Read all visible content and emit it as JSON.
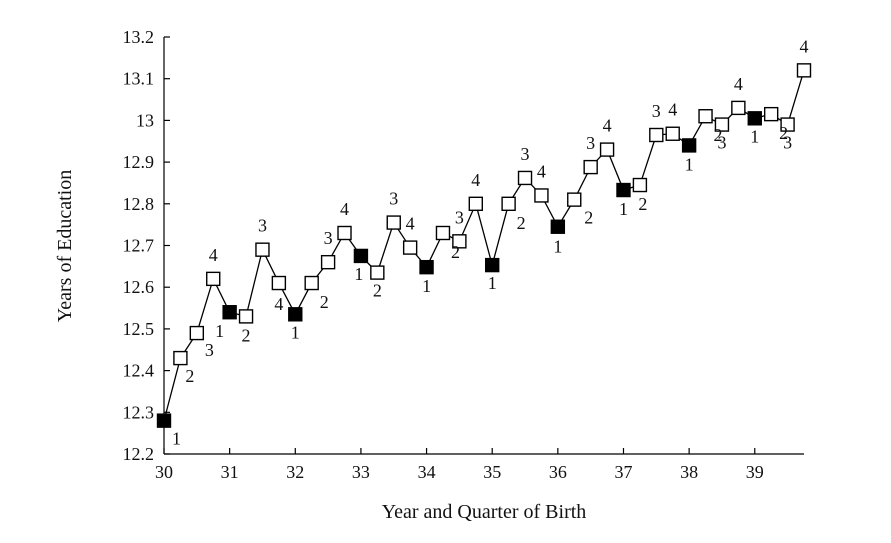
{
  "chart_data": {
    "type": "line",
    "title": "",
    "xlabel": "Year and Quarter of Birth",
    "ylabel": "Years of Education",
    "xlim": [
      30,
      39.75
    ],
    "ylim": [
      12.2,
      13.2
    ],
    "x_ticks": [
      30,
      31,
      32,
      33,
      34,
      35,
      36,
      37,
      38,
      39
    ],
    "x_tick_labels": [
      "30",
      "31",
      "32",
      "33",
      "34",
      "35",
      "36",
      "37",
      "38",
      "39"
    ],
    "y_ticks": [
      12.2,
      12.3,
      12.4,
      12.5,
      12.6,
      12.7,
      12.8,
      12.9,
      13.0,
      13.1,
      13.2
    ],
    "y_tick_labels": [
      "12.2",
      "12.3",
      "12.4",
      "12.5",
      "12.6",
      "12.7",
      "12.8",
      "12.9",
      "13",
      "13.1",
      "13.2"
    ],
    "grid": false,
    "legend": "none",
    "marker_style": {
      "quarter_1": "filled-square",
      "other_quarters": "hollow-square",
      "line_color": "#000000"
    },
    "series": [
      {
        "points": [
          {
            "x": 30.0,
            "y": 12.28,
            "quarter": "1"
          },
          {
            "x": 30.25,
            "y": 12.43,
            "quarter": "2"
          },
          {
            "x": 30.5,
            "y": 12.49,
            "quarter": "3"
          },
          {
            "x": 30.75,
            "y": 12.62,
            "quarter": "4"
          },
          {
            "x": 31.0,
            "y": 12.54,
            "quarter": "1"
          },
          {
            "x": 31.25,
            "y": 12.53,
            "quarter": "2"
          },
          {
            "x": 31.5,
            "y": 12.69,
            "quarter": "3"
          },
          {
            "x": 31.75,
            "y": 12.61,
            "quarter": "4"
          },
          {
            "x": 32.0,
            "y": 12.535,
            "quarter": "1"
          },
          {
            "x": 32.25,
            "y": 12.61,
            "quarter": "2"
          },
          {
            "x": 32.5,
            "y": 12.66,
            "quarter": "3"
          },
          {
            "x": 32.75,
            "y": 12.73,
            "quarter": "4"
          },
          {
            "x": 33.0,
            "y": 12.675,
            "quarter": "1"
          },
          {
            "x": 33.25,
            "y": 12.635,
            "quarter": "2"
          },
          {
            "x": 33.5,
            "y": 12.755,
            "quarter": "3"
          },
          {
            "x": 33.75,
            "y": 12.695,
            "quarter": "4"
          },
          {
            "x": 34.0,
            "y": 12.648,
            "quarter": "1"
          },
          {
            "x": 34.25,
            "y": 12.73,
            "quarter": "2"
          },
          {
            "x": 34.5,
            "y": 12.71,
            "quarter": "3"
          },
          {
            "x": 34.75,
            "y": 12.8,
            "quarter": "4"
          },
          {
            "x": 35.0,
            "y": 12.653,
            "quarter": "1"
          },
          {
            "x": 35.25,
            "y": 12.8,
            "quarter": "2"
          },
          {
            "x": 35.5,
            "y": 12.862,
            "quarter": "3"
          },
          {
            "x": 35.75,
            "y": 12.82,
            "quarter": "4"
          },
          {
            "x": 36.0,
            "y": 12.745,
            "quarter": "1"
          },
          {
            "x": 36.25,
            "y": 12.81,
            "quarter": "2"
          },
          {
            "x": 36.5,
            "y": 12.888,
            "quarter": "3"
          },
          {
            "x": 36.75,
            "y": 12.93,
            "quarter": "4"
          },
          {
            "x": 37.0,
            "y": 12.833,
            "quarter": "1"
          },
          {
            "x": 37.25,
            "y": 12.845,
            "quarter": "2"
          },
          {
            "x": 37.5,
            "y": 12.965,
            "quarter": "3"
          },
          {
            "x": 37.75,
            "y": 12.968,
            "quarter": "4"
          },
          {
            "x": 38.0,
            "y": 12.94,
            "quarter": "1"
          },
          {
            "x": 38.25,
            "y": 13.01,
            "quarter": "2"
          },
          {
            "x": 38.5,
            "y": 12.99,
            "quarter": "3"
          },
          {
            "x": 38.75,
            "y": 13.03,
            "quarter": "4"
          },
          {
            "x": 39.0,
            "y": 13.005,
            "quarter": "1"
          },
          {
            "x": 39.25,
            "y": 13.015,
            "quarter": "2"
          },
          {
            "x": 39.5,
            "y": 12.99,
            "quarter": "3"
          },
          {
            "x": 39.75,
            "y": 13.12,
            "quarter": "4"
          }
        ]
      }
    ]
  }
}
